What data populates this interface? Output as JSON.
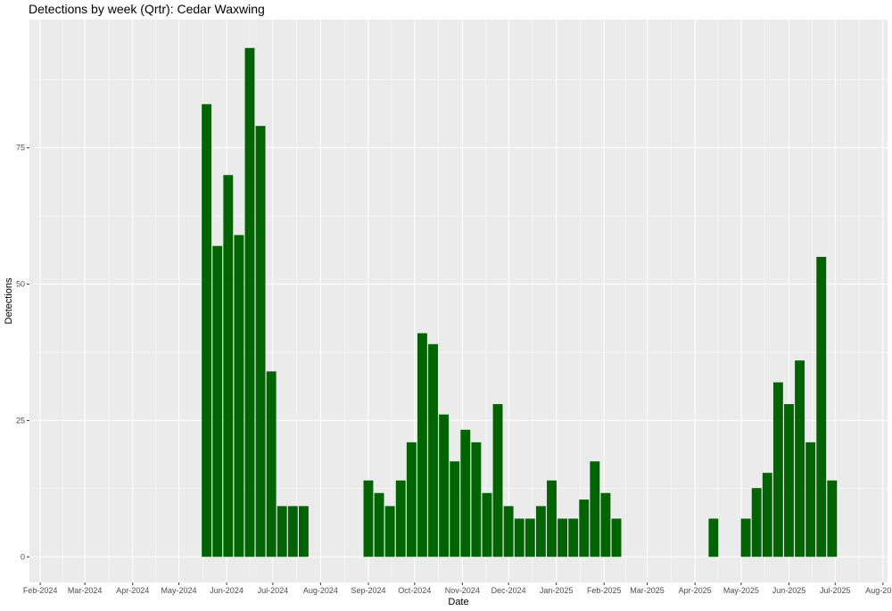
{
  "chart_data": {
    "type": "bar",
    "title": "Detections by week (Qrtr): Cedar Waxwing",
    "xlabel": "Date",
    "ylabel": "Detections",
    "xlim": [
      "2024-01-25",
      "2025-08-04"
    ],
    "ylim": [
      -4.7,
      98.5
    ],
    "x_ticks": [
      "2024-02-01",
      "2024-03-01",
      "2024-04-01",
      "2024-05-01",
      "2024-06-01",
      "2024-07-01",
      "2024-08-01",
      "2024-09-01",
      "2024-10-01",
      "2024-11-01",
      "2024-12-01",
      "2025-01-01",
      "2025-02-01",
      "2025-03-01",
      "2025-04-01",
      "2025-05-01",
      "2025-06-01",
      "2025-07-01",
      "2025-08-01"
    ],
    "x_tick_labels": [
      "Feb-2024",
      "Mar-2024",
      "Apr-2024",
      "May-2024",
      "Jun-2024",
      "Jul-2024",
      "Aug-2024",
      "Sep-2024",
      "Oct-2024",
      "Nov-2024",
      "Dec-2024",
      "Jan-2025",
      "Feb-2025",
      "Mar-2025",
      "Apr-2025",
      "May-2025",
      "Jun-2025",
      "Jul-2025",
      "Aug-2025"
    ],
    "y_ticks": [
      0,
      25,
      50,
      75
    ],
    "y_tick_labels": [
      "0",
      "25",
      "50",
      "75"
    ],
    "grid": true,
    "bar_width_days": 6.3,
    "colors": {
      "bar": "#006400",
      "panel": "#ebebeb",
      "grid_major": "#ffffff",
      "tick_text": "#4d4d4d"
    },
    "series": [
      {
        "x": [
          "2024-05-19",
          "2024-05-26",
          "2024-06-02",
          "2024-06-09",
          "2024-06-16",
          "2024-06-23",
          "2024-06-30",
          "2024-07-07",
          "2024-07-14",
          "2024-07-21",
          "2024-09-01",
          "2024-09-08",
          "2024-09-15",
          "2024-09-22",
          "2024-09-29",
          "2024-10-06",
          "2024-10-13",
          "2024-10-20",
          "2024-10-27",
          "2024-11-03",
          "2024-11-10",
          "2024-11-17",
          "2024-11-24",
          "2024-12-01",
          "2024-12-08",
          "2024-12-15",
          "2024-12-22",
          "2024-12-29",
          "2025-01-05",
          "2025-01-12",
          "2025-01-19",
          "2025-01-26",
          "2025-02-02",
          "2025-02-09",
          "2025-04-13",
          "2025-05-04",
          "2025-05-11",
          "2025-05-18",
          "2025-05-25",
          "2025-06-01",
          "2025-06-08",
          "2025-06-15",
          "2025-06-22",
          "2025-06-29"
        ],
        "values": [
          83,
          57,
          70,
          59,
          93.3,
          79,
          34,
          9.3,
          9.3,
          9.3,
          14,
          11.7,
          9.3,
          14,
          21,
          41,
          39,
          26.1,
          17.5,
          23.3,
          21,
          11.7,
          28,
          9.3,
          7,
          7,
          9.3,
          14,
          7,
          7,
          10.5,
          17.5,
          11.7,
          7,
          7,
          7,
          12.6,
          15.4,
          32,
          28,
          36,
          21,
          55,
          14
        ]
      }
    ]
  }
}
